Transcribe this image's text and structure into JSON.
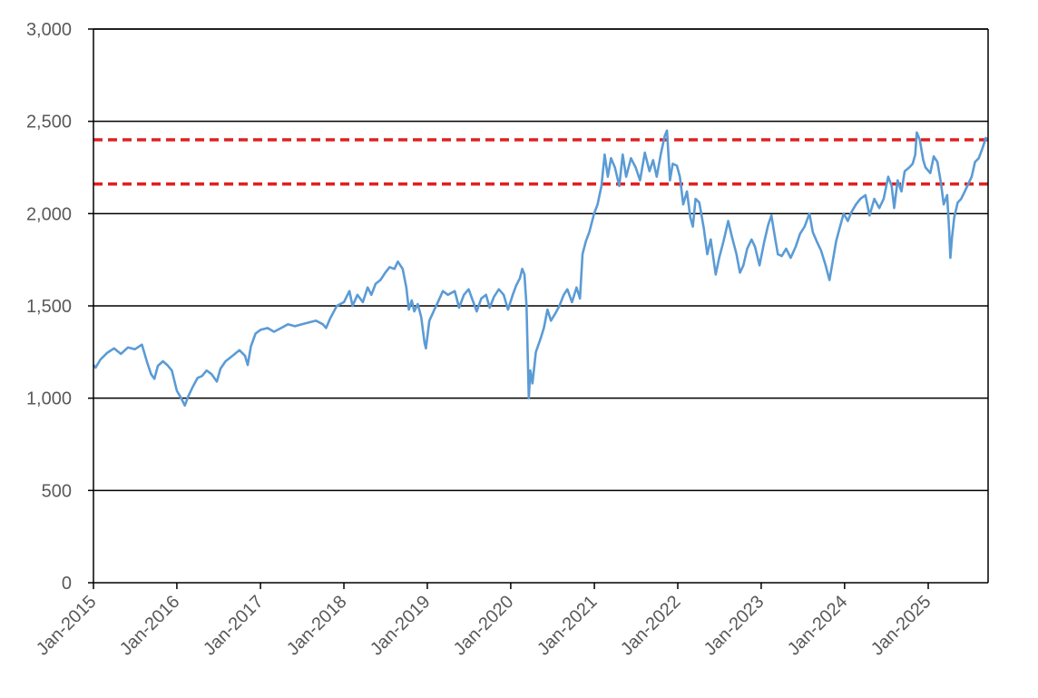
{
  "chart_data": {
    "type": "line",
    "title": "",
    "xlabel": "",
    "ylabel": "",
    "x_ticks": [
      "Jan-2015",
      "Jan-2016",
      "Jan-2017",
      "Jan-2018",
      "Jan-2019",
      "Jan-2020",
      "Jan-2021",
      "Jan-2022",
      "Jan-2023",
      "Jan-2024",
      "Jan-2025"
    ],
    "y_ticks": [
      "0",
      "500",
      "1,000",
      "1,500",
      "2,000",
      "2,500",
      "3,000"
    ],
    "xlim": [
      "2015-01-01",
      "2025-09-20"
    ],
    "ylim": [
      0,
      3000
    ],
    "grid": "horizontal",
    "legend": "none",
    "series": [
      {
        "color": "#5b9bd5",
        "points": [
          [
            "2015-01-01",
            1180
          ],
          [
            "2015-01-10",
            1165
          ],
          [
            "2015-02-01",
            1210
          ],
          [
            "2015-03-01",
            1245
          ],
          [
            "2015-04-01",
            1270
          ],
          [
            "2015-05-01",
            1240
          ],
          [
            "2015-06-01",
            1275
          ],
          [
            "2015-07-01",
            1265
          ],
          [
            "2015-08-01",
            1290
          ],
          [
            "2015-08-25",
            1190
          ],
          [
            "2015-09-10",
            1130
          ],
          [
            "2015-09-25",
            1105
          ],
          [
            "2015-10-10",
            1175
          ],
          [
            "2015-11-01",
            1200
          ],
          [
            "2015-11-20",
            1180
          ],
          [
            "2015-12-10",
            1150
          ],
          [
            "2016-01-01",
            1040
          ],
          [
            "2016-01-20",
            1000
          ],
          [
            "2016-02-05",
            960
          ],
          [
            "2016-02-20",
            1010
          ],
          [
            "2016-03-10",
            1060
          ],
          [
            "2016-04-01",
            1110
          ],
          [
            "2016-04-20",
            1120
          ],
          [
            "2016-05-10",
            1150
          ],
          [
            "2016-06-01",
            1130
          ],
          [
            "2016-06-24",
            1090
          ],
          [
            "2016-07-10",
            1160
          ],
          [
            "2016-08-01",
            1200
          ],
          [
            "2016-09-01",
            1230
          ],
          [
            "2016-10-01",
            1260
          ],
          [
            "2016-10-25",
            1230
          ],
          [
            "2016-11-06",
            1180
          ],
          [
            "2016-11-20",
            1280
          ],
          [
            "2016-12-10",
            1350
          ],
          [
            "2017-01-01",
            1370
          ],
          [
            "2017-02-01",
            1380
          ],
          [
            "2017-03-01",
            1360
          ],
          [
            "2017-04-01",
            1380
          ],
          [
            "2017-05-01",
            1400
          ],
          [
            "2017-06-01",
            1390
          ],
          [
            "2017-07-01",
            1400
          ],
          [
            "2017-08-01",
            1410
          ],
          [
            "2017-09-01",
            1420
          ],
          [
            "2017-10-01",
            1400
          ],
          [
            "2017-10-15",
            1380
          ],
          [
            "2017-11-01",
            1430
          ],
          [
            "2017-12-01",
            1500
          ],
          [
            "2018-01-01",
            1520
          ],
          [
            "2018-01-25",
            1580
          ],
          [
            "2018-02-08",
            1500
          ],
          [
            "2018-03-01",
            1560
          ],
          [
            "2018-03-25",
            1520
          ],
          [
            "2018-04-15",
            1600
          ],
          [
            "2018-05-01",
            1560
          ],
          [
            "2018-05-20",
            1620
          ],
          [
            "2018-06-10",
            1640
          ],
          [
            "2018-07-01",
            1680
          ],
          [
            "2018-07-20",
            1710
          ],
          [
            "2018-08-10",
            1700
          ],
          [
            "2018-08-25",
            1740
          ],
          [
            "2018-09-15",
            1700
          ],
          [
            "2018-10-01",
            1600
          ],
          [
            "2018-10-12",
            1480
          ],
          [
            "2018-10-25",
            1530
          ],
          [
            "2018-11-05",
            1470
          ],
          [
            "2018-11-20",
            1510
          ],
          [
            "2018-12-05",
            1440
          ],
          [
            "2018-12-20",
            1300
          ],
          [
            "2018-12-26",
            1270
          ],
          [
            "2019-01-10",
            1420
          ],
          [
            "2019-02-01",
            1480
          ],
          [
            "2019-02-20",
            1530
          ],
          [
            "2019-03-10",
            1580
          ],
          [
            "2019-04-01",
            1560
          ],
          [
            "2019-05-01",
            1580
          ],
          [
            "2019-05-20",
            1490
          ],
          [
            "2019-06-10",
            1560
          ],
          [
            "2019-07-01",
            1590
          ],
          [
            "2019-08-05",
            1470
          ],
          [
            "2019-08-25",
            1540
          ],
          [
            "2019-09-15",
            1560
          ],
          [
            "2019-10-01",
            1490
          ],
          [
            "2019-10-20",
            1550
          ],
          [
            "2019-11-10",
            1590
          ],
          [
            "2019-12-01",
            1560
          ],
          [
            "2019-12-20",
            1480
          ],
          [
            "2020-01-10",
            1560
          ],
          [
            "2020-01-25",
            1610
          ],
          [
            "2020-02-10",
            1650
          ],
          [
            "2020-02-20",
            1700
          ],
          [
            "2020-03-01",
            1670
          ],
          [
            "2020-03-10",
            1500
          ],
          [
            "2020-03-16",
            1200
          ],
          [
            "2020-03-20",
            1000
          ],
          [
            "2020-03-27",
            1150
          ],
          [
            "2020-04-05",
            1080
          ],
          [
            "2020-04-20",
            1250
          ],
          [
            "2020-05-10",
            1320
          ],
          [
            "2020-05-25",
            1380
          ],
          [
            "2020-06-10",
            1480
          ],
          [
            "2020-06-25",
            1420
          ],
          [
            "2020-07-15",
            1460
          ],
          [
            "2020-08-01",
            1500
          ],
          [
            "2020-08-20",
            1560
          ],
          [
            "2020-09-05",
            1590
          ],
          [
            "2020-09-25",
            1520
          ],
          [
            "2020-10-15",
            1600
          ],
          [
            "2020-10-30",
            1540
          ],
          [
            "2020-11-10",
            1780
          ],
          [
            "2020-11-25",
            1850
          ],
          [
            "2020-12-10",
            1900
          ],
          [
            "2020-12-31",
            2000
          ],
          [
            "2021-01-15",
            2050
          ],
          [
            "2021-02-01",
            2150
          ],
          [
            "2021-02-15",
            2320
          ],
          [
            "2021-03-01",
            2200
          ],
          [
            "2021-03-15",
            2300
          ],
          [
            "2021-04-01",
            2250
          ],
          [
            "2021-04-20",
            2150
          ],
          [
            "2021-05-05",
            2320
          ],
          [
            "2021-05-20",
            2200
          ],
          [
            "2021-06-10",
            2300
          ],
          [
            "2021-07-01",
            2250
          ],
          [
            "2021-07-20",
            2180
          ],
          [
            "2021-08-10",
            2330
          ],
          [
            "2021-08-30",
            2230
          ],
          [
            "2021-09-15",
            2290
          ],
          [
            "2021-10-01",
            2200
          ],
          [
            "2021-10-20",
            2330
          ],
          [
            "2021-11-05",
            2420
          ],
          [
            "2021-11-15",
            2450
          ],
          [
            "2021-11-28",
            2180
          ],
          [
            "2021-12-10",
            2270
          ],
          [
            "2021-12-28",
            2260
          ],
          [
            "2022-01-10",
            2200
          ],
          [
            "2022-01-25",
            2050
          ],
          [
            "2022-02-10",
            2120
          ],
          [
            "2022-02-25",
            1980
          ],
          [
            "2022-03-08",
            1930
          ],
          [
            "2022-03-20",
            2080
          ],
          [
            "2022-04-05",
            2060
          ],
          [
            "2022-04-25",
            1920
          ],
          [
            "2022-05-10",
            1780
          ],
          [
            "2022-05-25",
            1860
          ],
          [
            "2022-06-16",
            1670
          ],
          [
            "2022-07-01",
            1760
          ],
          [
            "2022-07-20",
            1850
          ],
          [
            "2022-08-10",
            1960
          ],
          [
            "2022-08-25",
            1880
          ],
          [
            "2022-09-15",
            1780
          ],
          [
            "2022-09-30",
            1680
          ],
          [
            "2022-10-15",
            1720
          ],
          [
            "2022-11-01",
            1810
          ],
          [
            "2022-11-20",
            1860
          ],
          [
            "2022-12-05",
            1820
          ],
          [
            "2022-12-25",
            1720
          ],
          [
            "2023-01-15",
            1850
          ],
          [
            "2023-02-01",
            1940
          ],
          [
            "2023-02-15",
            1990
          ],
          [
            "2023-03-01",
            1880
          ],
          [
            "2023-03-15",
            1780
          ],
          [
            "2023-04-01",
            1770
          ],
          [
            "2023-04-20",
            1810
          ],
          [
            "2023-05-10",
            1760
          ],
          [
            "2023-06-01",
            1820
          ],
          [
            "2023-06-20",
            1890
          ],
          [
            "2023-07-10",
            1930
          ],
          [
            "2023-07-31",
            2000
          ],
          [
            "2023-08-15",
            1900
          ],
          [
            "2023-09-01",
            1850
          ],
          [
            "2023-09-20",
            1800
          ],
          [
            "2023-10-10",
            1720
          ],
          [
            "2023-10-27",
            1640
          ],
          [
            "2023-11-10",
            1740
          ],
          [
            "2023-11-25",
            1850
          ],
          [
            "2023-12-10",
            1920
          ],
          [
            "2023-12-28",
            2000
          ],
          [
            "2024-01-15",
            1960
          ],
          [
            "2024-02-01",
            2010
          ],
          [
            "2024-02-20",
            2050
          ],
          [
            "2024-03-10",
            2080
          ],
          [
            "2024-04-01",
            2100
          ],
          [
            "2024-04-19",
            1990
          ],
          [
            "2024-05-10",
            2080
          ],
          [
            "2024-06-01",
            2030
          ],
          [
            "2024-06-20",
            2080
          ],
          [
            "2024-07-10",
            2200
          ],
          [
            "2024-07-25",
            2150
          ],
          [
            "2024-08-05",
            2030
          ],
          [
            "2024-08-20",
            2180
          ],
          [
            "2024-09-06",
            2120
          ],
          [
            "2024-09-20",
            2230
          ],
          [
            "2024-10-10",
            2250
          ],
          [
            "2024-10-25",
            2270
          ],
          [
            "2024-11-05",
            2320
          ],
          [
            "2024-11-12",
            2440
          ],
          [
            "2024-11-25",
            2400
          ],
          [
            "2024-12-10",
            2290
          ],
          [
            "2024-12-20",
            2250
          ],
          [
            "2025-01-10",
            2220
          ],
          [
            "2025-01-25",
            2310
          ],
          [
            "2025-02-10",
            2280
          ],
          [
            "2025-02-25",
            2170
          ],
          [
            "2025-03-10",
            2050
          ],
          [
            "2025-03-25",
            2100
          ],
          [
            "2025-04-03",
            1900
          ],
          [
            "2025-04-08",
            1760
          ],
          [
            "2025-04-15",
            1870
          ],
          [
            "2025-04-25",
            1980
          ],
          [
            "2025-05-10",
            2060
          ],
          [
            "2025-05-25",
            2080
          ],
          [
            "2025-06-10",
            2120
          ],
          [
            "2025-06-25",
            2160
          ],
          [
            "2025-07-10",
            2200
          ],
          [
            "2025-07-25",
            2280
          ],
          [
            "2025-08-10",
            2300
          ],
          [
            "2025-08-25",
            2350
          ],
          [
            "2025-09-10",
            2410
          ],
          [
            "2025-09-20",
            2400
          ]
        ]
      }
    ],
    "reference_lines": [
      {
        "y": 2400,
        "color": "#e02020",
        "style": "dashed"
      },
      {
        "y": 2160,
        "color": "#e02020",
        "style": "dashed"
      }
    ]
  }
}
